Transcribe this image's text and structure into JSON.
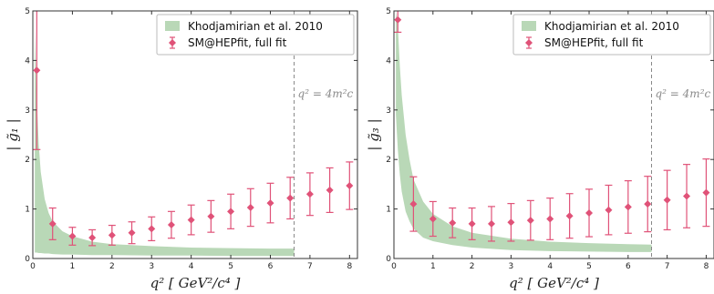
{
  "chart_data": [
    {
      "type": "scatter",
      "ylabel": "| g̃₁ |",
      "xlabel": "q² [ GeV²/c⁴ ]",
      "xlim": [
        0,
        8.2
      ],
      "ylim": [
        0,
        5
      ],
      "xticks": [
        0,
        1,
        2,
        3,
        4,
        5,
        6,
        7,
        8
      ],
      "yticks": [
        0,
        1,
        2,
        3,
        4,
        5
      ],
      "grid": false,
      "legend_position": "top-right",
      "vline": {
        "x": 6.6,
        "label": "q² = 4m²c"
      },
      "band": {
        "name": "Khodjamirian et al. 2010",
        "color": "#b9d8b7",
        "x": [
          0.05,
          0.1,
          0.15,
          0.2,
          0.3,
          0.4,
          0.5,
          0.75,
          1.0,
          1.5,
          2.0,
          3.0,
          4.0,
          5.0,
          6.0,
          6.6
        ],
        "lower": [
          0.12,
          0.12,
          0.11,
          0.11,
          0.1,
          0.1,
          0.09,
          0.08,
          0.08,
          0.07,
          0.07,
          0.06,
          0.06,
          0.05,
          0.05,
          0.05
        ],
        "upper": [
          4.6,
          3.2,
          2.3,
          1.75,
          1.2,
          0.92,
          0.75,
          0.55,
          0.45,
          0.34,
          0.29,
          0.25,
          0.22,
          0.21,
          0.2,
          0.2
        ]
      },
      "series": [
        {
          "name": "SM@HEPfit, full fit",
          "color": "#e05278",
          "x": [
            0.1,
            0.5,
            1.0,
            1.5,
            2.0,
            2.5,
            3.0,
            3.5,
            4.0,
            4.5,
            5.0,
            5.5,
            6.0,
            6.5,
            7.0,
            7.5,
            8.0
          ],
          "y": [
            3.8,
            0.7,
            0.45,
            0.42,
            0.47,
            0.52,
            0.6,
            0.68,
            0.78,
            0.85,
            0.95,
            1.03,
            1.12,
            1.22,
            1.3,
            1.38,
            1.47
          ],
          "yerr": [
            1.6,
            0.32,
            0.18,
            0.16,
            0.2,
            0.22,
            0.24,
            0.27,
            0.3,
            0.32,
            0.35,
            0.38,
            0.4,
            0.42,
            0.43,
            0.45,
            0.48
          ]
        }
      ]
    },
    {
      "type": "scatter",
      "ylabel": "| g̃₃ |",
      "xlabel": "q² [ GeV²/c⁴ ]",
      "xlim": [
        0,
        8.2
      ],
      "ylim": [
        0,
        5
      ],
      "xticks": [
        0,
        1,
        2,
        3,
        4,
        5,
        6,
        7,
        8
      ],
      "yticks": [
        0,
        1,
        2,
        3,
        4,
        5
      ],
      "grid": false,
      "legend_position": "top-right",
      "vline": {
        "x": 6.6,
        "label": "q² = 4m²c"
      },
      "band": {
        "name": "Khodjamirian et al. 2010",
        "color": "#b9d8b7",
        "x": [
          0.05,
          0.1,
          0.15,
          0.2,
          0.3,
          0.4,
          0.5,
          0.75,
          1.0,
          1.5,
          2.0,
          3.0,
          4.0,
          5.0,
          6.0,
          6.6
        ],
        "lower": [
          2.9,
          2.2,
          1.7,
          1.35,
          0.95,
          0.75,
          0.6,
          0.42,
          0.35,
          0.27,
          0.22,
          0.17,
          0.15,
          0.14,
          0.13,
          0.13
        ],
        "upper": [
          5.0,
          4.7,
          3.9,
          3.3,
          2.5,
          2.0,
          1.6,
          1.15,
          0.9,
          0.65,
          0.52,
          0.4,
          0.34,
          0.31,
          0.29,
          0.28
        ]
      },
      "series": [
        {
          "name": "SM@HEPfit, full fit",
          "color": "#e05278",
          "x": [
            0.1,
            0.5,
            1.0,
            1.5,
            2.0,
            2.5,
            3.0,
            3.5,
            4.0,
            4.5,
            5.0,
            5.5,
            6.0,
            6.5,
            7.0,
            7.5,
            8.0
          ],
          "y": [
            4.82,
            1.1,
            0.8,
            0.72,
            0.7,
            0.7,
            0.73,
            0.77,
            0.8,
            0.86,
            0.92,
            0.98,
            1.04,
            1.1,
            1.18,
            1.26,
            1.33
          ],
          "yerr": [
            0.25,
            0.55,
            0.35,
            0.3,
            0.32,
            0.35,
            0.38,
            0.4,
            0.42,
            0.45,
            0.48,
            0.5,
            0.53,
            0.56,
            0.6,
            0.64,
            0.68
          ]
        }
      ]
    }
  ]
}
